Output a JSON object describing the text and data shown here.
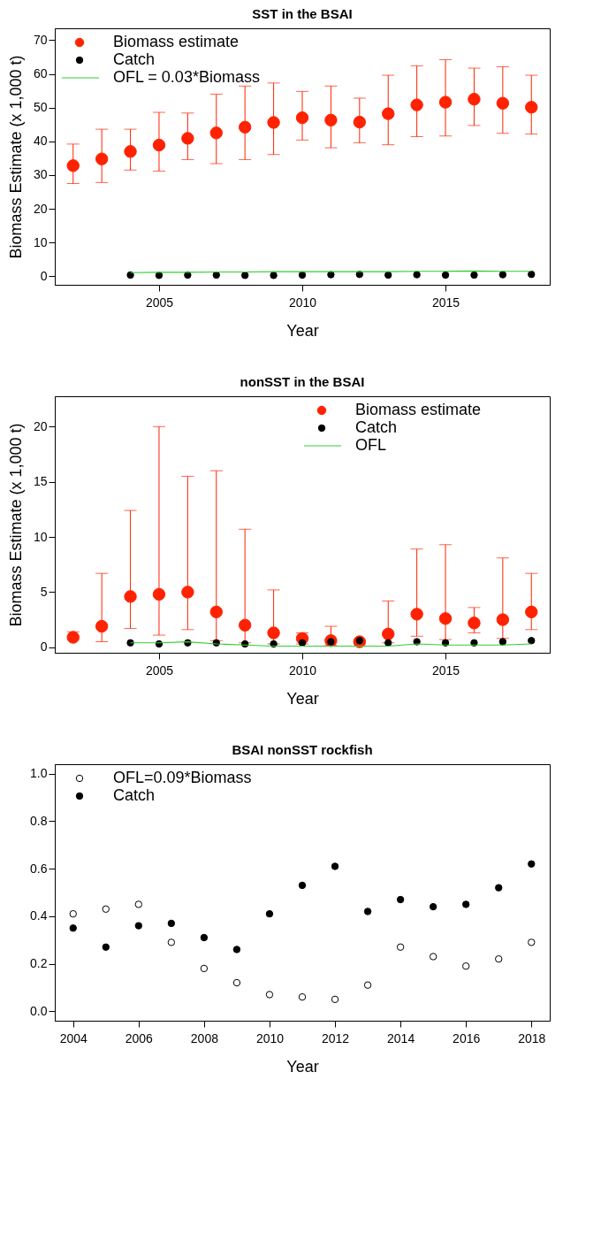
{
  "chart_data": [
    {
      "type": "scatter",
      "title": "SST in the BSAI",
      "xlabel": "Year",
      "ylabel": "Biomass Estimate (x 1,000 t)",
      "xlim": [
        2001.36,
        2018.64
      ],
      "xticks": [
        2005,
        2010,
        2015
      ],
      "ylim": [
        -2.5,
        73.5
      ],
      "yticks": [
        0,
        10,
        20,
        30,
        40,
        50,
        60,
        70
      ],
      "legend": "top left",
      "grid": false,
      "x": [
        2002,
        2003,
        2004,
        2005,
        2006,
        2007,
        2008,
        2009,
        2010,
        2011,
        2012,
        2013,
        2014,
        2015,
        2016,
        2017,
        2018
      ],
      "series": [
        {
          "name": "Biomass estimate",
          "type": "scatter",
          "marker": "circle",
          "color": "#ff2200",
          "values": [
            32.8,
            34.8,
            37,
            38.9,
            40.9,
            42.5,
            44.2,
            45.6,
            47,
            46.3,
            45.7,
            48.2,
            50.8,
            51.6,
            52.5,
            51.3,
            50.1
          ],
          "errors": [
            [
              27.5,
              39.2
            ],
            [
              27.8,
              43.6
            ],
            [
              31.5,
              43.6
            ],
            [
              31.2,
              48.6
            ],
            [
              34.6,
              48.4
            ],
            [
              33.4,
              54
            ],
            [
              34.6,
              56.4
            ],
            [
              36.1,
              57.3
            ],
            [
              40.4,
              54.8
            ],
            [
              38.1,
              56.4
            ],
            [
              39.6,
              52.8
            ],
            [
              39,
              59.6
            ],
            [
              41.4,
              62.4
            ],
            [
              41.6,
              64.2
            ],
            [
              44.7,
              61.7
            ],
            [
              42.4,
              62.1
            ],
            [
              42.2,
              59.6
            ]
          ]
        },
        {
          "name": "Catch",
          "type": "scatter",
          "marker": "circle",
          "color": "#000000",
          "x": [
            2004,
            2005,
            2006,
            2007,
            2008,
            2009,
            2010,
            2011,
            2012,
            2013,
            2014,
            2015,
            2016,
            2017,
            2018
          ],
          "values": [
            0.4,
            0.3,
            0.4,
            0.4,
            0.3,
            0.3,
            0.4,
            0.5,
            0.6,
            0.4,
            0.5,
            0.4,
            0.4,
            0.5,
            0.6
          ]
        },
        {
          "name": "OFL = 0.03*Biomass",
          "type": "line",
          "color": "#33cc33",
          "x": [
            2004,
            2005,
            2006,
            2007,
            2008,
            2009,
            2010,
            2011,
            2012,
            2013,
            2014,
            2015,
            2016,
            2017,
            2018
          ],
          "values": [
            1.1,
            1.2,
            1.2,
            1.3,
            1.3,
            1.4,
            1.4,
            1.4,
            1.4,
            1.4,
            1.5,
            1.5,
            1.6,
            1.5,
            1.5
          ]
        }
      ]
    },
    {
      "type": "scatter",
      "title": "nonSST in the BSAI",
      "xlabel": "Year",
      "ylabel": "Biomass Estimate (x 1,000 t)",
      "xlim": [
        2001.36,
        2018.64
      ],
      "xticks": [
        2005,
        2010,
        2015
      ],
      "ylim": [
        -0.5,
        22.75
      ],
      "yticks": [
        0,
        5,
        10,
        15,
        20
      ],
      "legend": "top right",
      "grid": false,
      "x": [
        2002,
        2003,
        2004,
        2005,
        2006,
        2007,
        2008,
        2009,
        2010,
        2011,
        2012,
        2013,
        2014,
        2015,
        2016,
        2017,
        2018
      ],
      "series": [
        {
          "name": "Biomass estimate",
          "type": "scatter",
          "marker": "circle",
          "color": "#ff2200",
          "values": [
            0.9,
            1.9,
            4.6,
            4.8,
            5.0,
            3.2,
            2.0,
            1.3,
            0.8,
            0.6,
            0.5,
            1.2,
            3.0,
            2.6,
            2.2,
            2.5,
            3.2
          ],
          "errors": [
            [
              0.7,
              1.4
            ],
            [
              0.5,
              6.7
            ],
            [
              1.7,
              12.4
            ],
            [
              1.1,
              20
            ],
            [
              1.6,
              15.5
            ],
            [
              0.6,
              16
            ],
            [
              0.4,
              10.7
            ],
            [
              0.3,
              5.2
            ],
            [
              0.3,
              1.3
            ],
            [
              0.2,
              1.9
            ],
            [
              0.3,
              0.6
            ],
            [
              0.4,
              4.2
            ],
            [
              1.0,
              8.9
            ],
            [
              0.7,
              9.3
            ],
            [
              1.3,
              3.6
            ],
            [
              0.8,
              8.1
            ],
            [
              1.6,
              6.7
            ]
          ]
        },
        {
          "name": "Catch",
          "type": "scatter",
          "marker": "circle",
          "color": "#000000",
          "x": [
            2004,
            2005,
            2006,
            2007,
            2008,
            2009,
            2010,
            2011,
            2012,
            2013,
            2014,
            2015,
            2016,
            2017,
            2018
          ],
          "values": [
            0.4,
            0.3,
            0.4,
            0.4,
            0.3,
            0.3,
            0.4,
            0.5,
            0.6,
            0.4,
            0.5,
            0.4,
            0.4,
            0.5,
            0.6
          ]
        },
        {
          "name": "OFL",
          "type": "line",
          "color": "#33cc33",
          "x": [
            2004,
            2005,
            2006,
            2007,
            2008,
            2009,
            2010,
            2011,
            2012,
            2013,
            2014,
            2015,
            2016,
            2017,
            2018
          ],
          "values": [
            0.4,
            0.4,
            0.5,
            0.3,
            0.2,
            0.1,
            0.1,
            0.1,
            0.1,
            0.1,
            0.3,
            0.2,
            0.2,
            0.2,
            0.3
          ]
        }
      ]
    },
    {
      "type": "scatter",
      "title": "BSAI nonSST rockfish",
      "xlabel": "Year",
      "xlim": [
        2003.44,
        2018.56
      ],
      "xticks": [
        2004,
        2006,
        2008,
        2010,
        2012,
        2014,
        2016,
        2018
      ],
      "ylim": [
        -0.04,
        1.04
      ],
      "yticks": [
        {
          "value": 0,
          "label": "0.0"
        },
        0.2,
        0.4,
        0.6,
        0.8,
        {
          "value": 1,
          "label": "1.0"
        }
      ],
      "legend": "top left",
      "grid": false,
      "x": [
        2004,
        2005,
        2006,
        2007,
        2008,
        2009,
        2010,
        2011,
        2012,
        2013,
        2014,
        2015,
        2016,
        2017,
        2018
      ],
      "series": [
        {
          "name": "OFL=0.09*Biomass",
          "type": "scatter",
          "marker": "circle",
          "color": "#000000",
          "values": [
            0.41,
            0.43,
            0.45,
            0.29,
            0.18,
            0.12,
            0.07,
            0.06,
            0.05,
            0.11,
            0.27,
            0.23,
            0.19,
            0.22,
            0.29
          ]
        },
        {
          "name": "Catch",
          "type": "scatter",
          "marker": "circle",
          "color": "#000000",
          "values": [
            0.35,
            0.27,
            0.36,
            0.37,
            0.31,
            0.26,
            0.41,
            0.53,
            0.61,
            0.42,
            0.47,
            0.44,
            0.45,
            0.52,
            0.62
          ]
        }
      ]
    }
  ]
}
